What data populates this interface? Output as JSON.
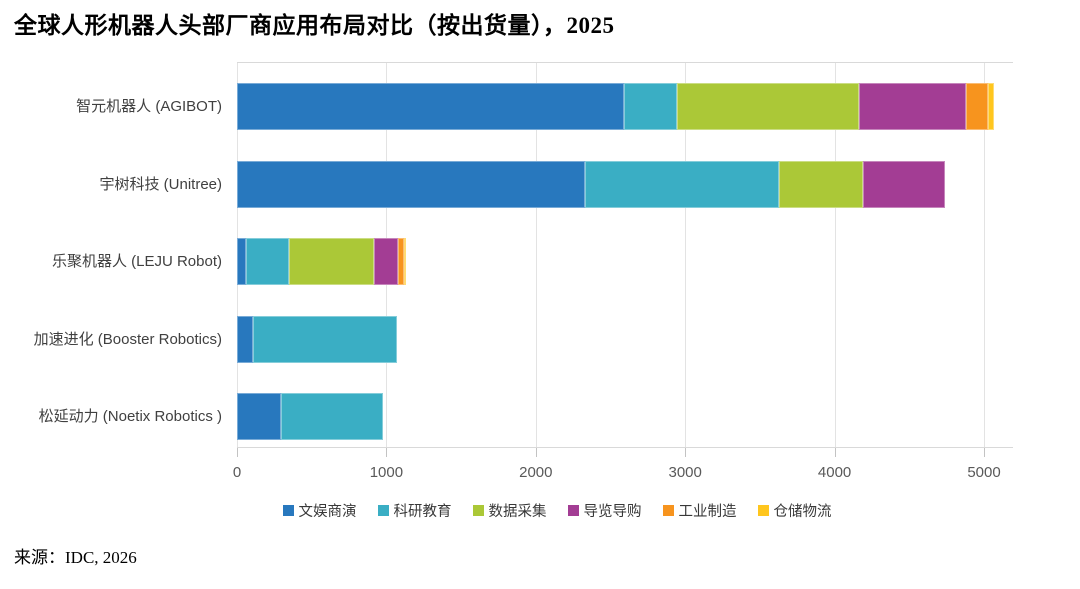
{
  "title": "全球人形机器人头部厂商应用布局对比（按出货量），2025",
  "source": "来源：IDC, 2026",
  "chart_data": {
    "type": "bar",
    "orientation": "horizontal",
    "stacked": true,
    "title": "全球人形机器人头部厂商应用布局对比（按出货量），2025",
    "categories": [
      "智元机器人 (AGIBOT)",
      "宇树科技 (Unitree)",
      "乐聚机器人 (LEJU Robot)",
      "加速进化 (Booster Robotics)",
      "松延动力 (Noetix Robotics )"
    ],
    "series": [
      {
        "name": "文娱商演",
        "color": "#2878BE",
        "values": [
          2590,
          2330,
          60,
          110,
          295
        ]
      },
      {
        "name": "科研教育",
        "color": "#3AAEC4",
        "values": [
          355,
          1300,
          290,
          960,
          680
        ]
      },
      {
        "name": "数据采集",
        "color": "#ABC837",
        "values": [
          1220,
          560,
          565,
          0,
          0
        ]
      },
      {
        "name": "导览导购",
        "color": "#A33D94",
        "values": [
          715,
          550,
          165,
          0,
          0
        ]
      },
      {
        "name": "工业制造",
        "color": "#F7941E",
        "values": [
          150,
          0,
          40,
          0,
          0
        ]
      },
      {
        "name": "仓储物流",
        "color": "#FFC61E",
        "values": [
          40,
          0,
          12,
          0,
          0
        ]
      }
    ],
    "totals": [
      5070,
      4740,
      1132,
      1070,
      975
    ],
    "x_axis": {
      "ticks": [
        "0",
        "1000",
        "2000",
        "3000",
        "4000",
        "5000"
      ],
      "tick_values": [
        0,
        1000,
        2000,
        3000,
        4000,
        5000
      ],
      "max": 5200,
      "grid": true
    },
    "legend": [
      "文娱商演",
      "科研教育",
      "数据采集",
      "导览导购",
      "工业制造",
      "仓储物流"
    ],
    "legend_position": "bottom"
  }
}
